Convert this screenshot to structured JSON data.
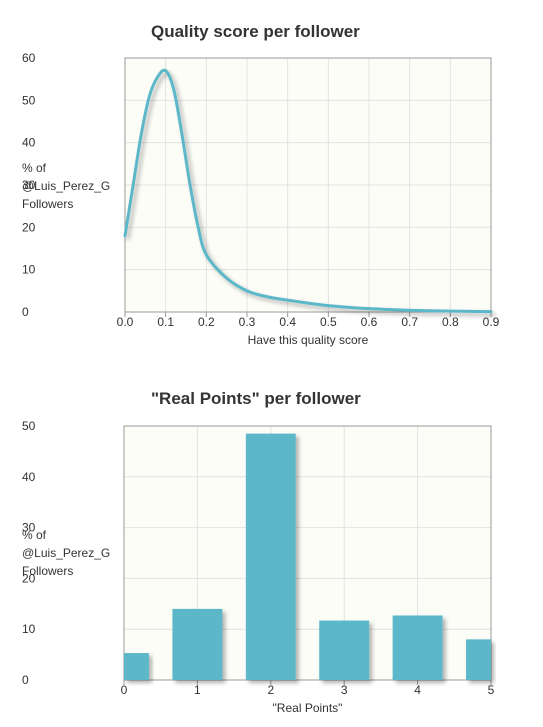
{
  "chart_data": [
    {
      "type": "line",
      "title": "Quality score per follower",
      "ylabel": "% of\n@Luis_Perez_G\nFollowers",
      "xlabel": "Have this quality score",
      "ylim": [
        0,
        60
      ],
      "xlim": [
        0,
        0.9
      ],
      "yticks": [
        0,
        10,
        20,
        30,
        40,
        50,
        60
      ],
      "xticks": [
        "0.0",
        "0.1",
        "0.2",
        "0.3",
        "0.4",
        "0.5",
        "0.6",
        "0.7",
        "0.8",
        "0.9"
      ],
      "grid": true,
      "series": [
        {
          "color": "#5bb8c9",
          "x": [
            0.0,
            0.02,
            0.04,
            0.06,
            0.08,
            0.1,
            0.12,
            0.14,
            0.16,
            0.18,
            0.2,
            0.25,
            0.3,
            0.35,
            0.4,
            0.45,
            0.5,
            0.55,
            0.6,
            0.65,
            0.7,
            0.75,
            0.8,
            0.85,
            0.9
          ],
          "y": [
            18,
            30,
            42,
            51,
            55.5,
            57,
            52.5,
            42,
            30,
            20,
            13.5,
            8,
            5,
            3.6,
            2.8,
            2.1,
            1.5,
            1.1,
            0.8,
            0.6,
            0.4,
            0.3,
            0.2,
            0.15,
            0.1
          ]
        }
      ]
    },
    {
      "type": "bar",
      "title": "\"Real Points\" per follower",
      "ylabel": "% of\n@Luis_Perez_G\nFollowers",
      "xlabel": "\"Real Points\"",
      "ylim": [
        0,
        50
      ],
      "xlim": [
        0,
        5
      ],
      "yticks": [
        0,
        10,
        20,
        30,
        40,
        50
      ],
      "xticks": [
        "0",
        "1",
        "2",
        "3",
        "4",
        "5"
      ],
      "grid": true,
      "color": "#5bb8c9",
      "bars": [
        {
          "x": 0,
          "value": 5.3
        },
        {
          "x": 1,
          "value": 14
        },
        {
          "x": 2,
          "value": 48.5
        },
        {
          "x": 3,
          "value": 11.7
        },
        {
          "x": 4,
          "value": 12.7
        },
        {
          "x": 5,
          "value": 8
        }
      ]
    }
  ]
}
